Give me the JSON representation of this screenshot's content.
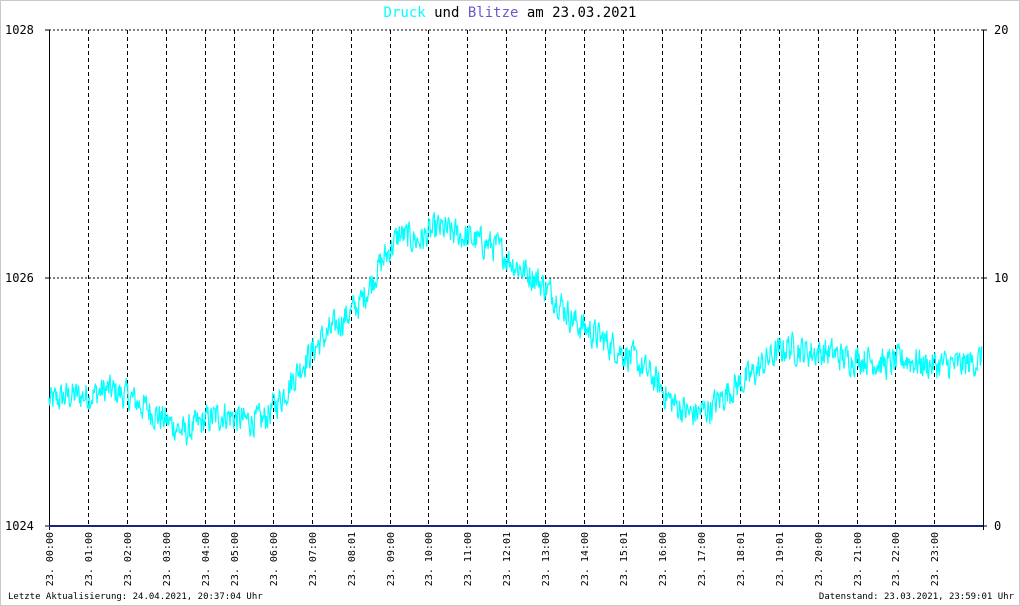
{
  "title": {
    "word1": "Druck",
    "word2": "und",
    "word3": "Blitze",
    "word4": "am",
    "date": "23.03.2021"
  },
  "colors": {
    "druck": "#00ffff",
    "blitze": "#6a5acd",
    "baseline": "#1a237e",
    "grid": "#000000",
    "text": "#000000"
  },
  "footer": {
    "left": "Letzte Aktualisierung: 24.04.2021, 20:37:04 Uhr",
    "right": "Datenstand: 23.03.2021, 23:59:01 Uhr"
  },
  "chart_data": {
    "type": "line",
    "yleft": {
      "ticks": [
        "1028",
        "1026",
        "1024"
      ],
      "range": [
        1024,
        1028
      ]
    },
    "yright": {
      "ticks": [
        "20",
        "10",
        "0"
      ],
      "range": [
        0,
        20
      ]
    },
    "xlim": [
      0,
      24
    ],
    "grid": true,
    "x_ticks": [
      {
        "h": 0.0,
        "label": "23. 00:00"
      },
      {
        "h": 1.0,
        "label": "23. 01:00"
      },
      {
        "h": 2.0,
        "label": "23. 02:00"
      },
      {
        "h": 3.0,
        "label": "23. 03:00"
      },
      {
        "h": 4.0,
        "label": "23. 04:00"
      },
      {
        "h": 4.75,
        "label": "23. 05:00"
      },
      {
        "h": 5.75,
        "label": "23. 06:00"
      },
      {
        "h": 6.75,
        "label": "23. 07:00"
      },
      {
        "h": 7.75,
        "label": "23. 08:01"
      },
      {
        "h": 8.75,
        "label": "23. 09:00"
      },
      {
        "h": 9.75,
        "label": "23. 10:00"
      },
      {
        "h": 10.75,
        "label": "23. 11:00"
      },
      {
        "h": 11.75,
        "label": "23. 12:01"
      },
      {
        "h": 12.75,
        "label": "23. 13:00"
      },
      {
        "h": 13.75,
        "label": "23. 14:00"
      },
      {
        "h": 14.75,
        "label": "23. 15:01"
      },
      {
        "h": 15.75,
        "label": "23. 16:00"
      },
      {
        "h": 16.75,
        "label": "23. 17:00"
      },
      {
        "h": 17.75,
        "label": "23. 18:01"
      },
      {
        "h": 18.75,
        "label": "23. 19:01"
      },
      {
        "h": 19.75,
        "label": "23. 20:00"
      },
      {
        "h": 20.75,
        "label": "23. 21:00"
      },
      {
        "h": 21.75,
        "label": "23. 22:00"
      },
      {
        "h": 22.75,
        "label": "23. 23:00"
      }
    ],
    "series": [
      {
        "name": "Druck",
        "x": [
          0,
          0.5,
          1,
          1.5,
          2,
          2.5,
          3,
          3.5,
          4,
          4.5,
          5,
          5.5,
          6,
          6.5,
          7,
          7.5,
          8,
          8.5,
          9,
          9.5,
          10,
          10.5,
          11,
          11.5,
          12,
          12.5,
          13,
          13.5,
          14,
          14.5,
          15,
          15.5,
          16,
          16.5,
          17,
          17.5,
          18,
          18.5,
          19,
          19.5,
          20,
          20.5,
          21,
          21.5,
          22,
          22.5,
          23,
          23.5,
          23.98
        ],
        "y": [
          1025.0,
          1025.05,
          1025.05,
          1025.1,
          1025.05,
          1024.95,
          1024.85,
          1024.75,
          1024.85,
          1024.9,
          1024.85,
          1024.85,
          1025.05,
          1025.3,
          1025.5,
          1025.65,
          1025.8,
          1026.1,
          1026.35,
          1026.3,
          1026.4,
          1026.35,
          1026.3,
          1026.25,
          1026.1,
          1026.0,
          1025.85,
          1025.65,
          1025.55,
          1025.45,
          1025.35,
          1025.2,
          1025.0,
          1024.9,
          1024.95,
          1025.1,
          1025.2,
          1025.35,
          1025.45,
          1025.4,
          1025.4,
          1025.35,
          1025.35,
          1025.3,
          1025.35,
          1025.3,
          1025.3,
          1025.3,
          1025.35
        ]
      },
      {
        "name": "Blitze",
        "x": [
          0,
          24
        ],
        "y": [
          0,
          0
        ]
      }
    ]
  }
}
